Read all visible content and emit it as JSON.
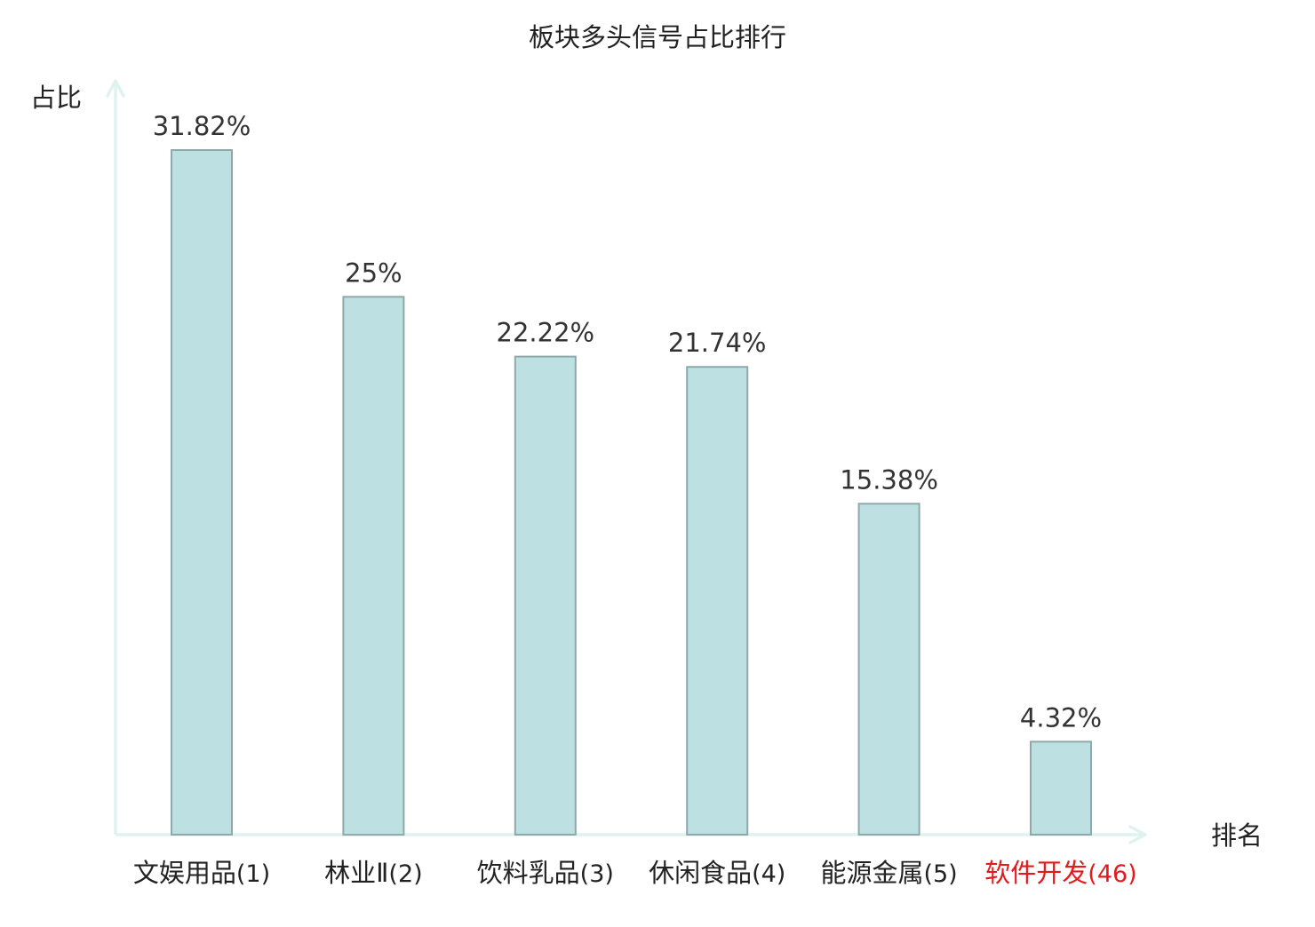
{
  "chart_data": {
    "type": "bar",
    "title": "板块多头信号占比排行",
    "ylabel": "占比",
    "xlabel": "排名",
    "ylim": [
      0,
      35
    ],
    "grid": false,
    "categories": [
      {
        "name": "文娱用品",
        "rank": "(1)",
        "highlight": false
      },
      {
        "name": "林业Ⅱ",
        "rank": "(2)",
        "highlight": false
      },
      {
        "name": "饮料乳品",
        "rank": "(3)",
        "highlight": false
      },
      {
        "name": "休闲食品",
        "rank": "(4)",
        "highlight": false
      },
      {
        "name": "能源金属",
        "rank": "(5)",
        "highlight": false
      },
      {
        "name": "软件开发",
        "rank": "(46)",
        "highlight": true
      }
    ],
    "values": [
      31.82,
      25,
      22.22,
      21.74,
      15.38,
      4.32
    ],
    "value_labels": [
      "31.82%",
      "25%",
      "22.22%",
      "21.74%",
      "15.38%",
      "4.32%"
    ]
  },
  "colors": {
    "bar_fill": "#bde0e3",
    "bar_stroke": "#8fa9ab",
    "axis": "#dff2ef",
    "text": "#222222",
    "value_label": "#333333",
    "highlight": "#e41a1c"
  }
}
